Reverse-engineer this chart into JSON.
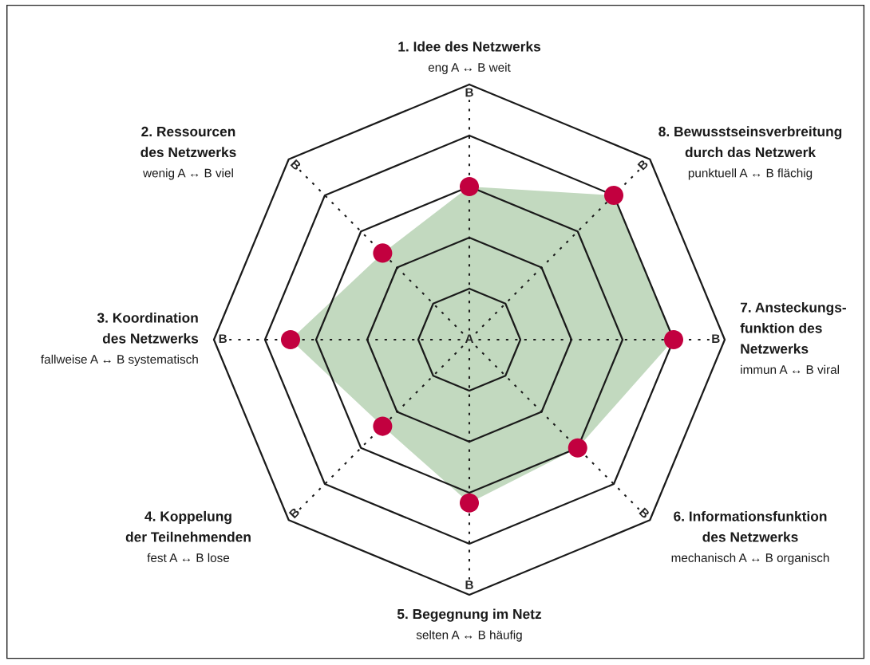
{
  "chart_data": {
    "type": "radar",
    "categories": [
      "1. Idee des Netzwerks\neng A ↔ B weit",
      "8. Bewusstseinsverbreitung\ndurch das Netzwerk\npunktuell A ↔ B flächig",
      "7. Ansteckungs-\nfunktion des\nNetzwerks\nimmun A ↔ B viral",
      "6. Informationsfunktion\ndes Netzwerks\nmechanisch A ↔ B organisch",
      "5. Begegnung im Netz\nselten A ↔ B häufig",
      "4. Koppelung\nder Teilnehmenden\nfest A ↔ B lose",
      "3. Koordination\ndes Netzwerks\nfallweise A ↔ B systematisch",
      "2. Ressourcen\ndes Netzwerks\nwenig A ↔ B viel"
    ],
    "series": [
      {
        "color": "#c2d9bf",
        "colors": [
          "#c2003f",
          "#c2003f",
          "#c2003f",
          "#c2003f",
          "#c2003f",
          "#c2003f",
          "#c2003f",
          "#c2003f"
        ],
        "values": [
          0.6,
          0.8,
          0.8,
          0.6,
          0.64,
          0.48,
          0.7,
          0.48
        ]
      }
    ],
    "ylim": [
      0,
      1
    ],
    "yticks": [
      {
        "value": 0,
        "label": "A"
      },
      {
        "value": 1,
        "label": "B"
      }
    ],
    "marker": "circle",
    "grid": true
  }
}
